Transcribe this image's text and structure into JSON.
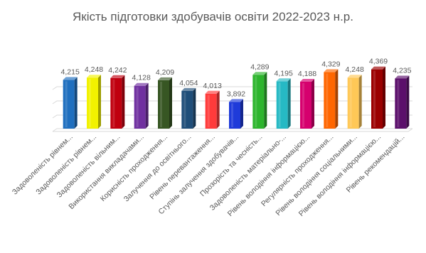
{
  "chart_data": {
    "type": "bar",
    "title": "Якість підготовки здобувачів освіти 2022-2023 н.р.",
    "xlabel": "",
    "ylabel": "",
    "ylim": [
      3.5,
      4.5
    ],
    "grid": true,
    "legend": "none",
    "categories": [
      "Задоволеність рівнем...",
      "Задоволеність рівнем...",
      "Задоволеність вільним...",
      "Використання викладачами...",
      "Корисність проходження...",
      "Залучення до освітнього...",
      "Рівень перевантаження...",
      "Ступінь залучення здобувачів...",
      "Прозорість та чесність...",
      "Задоволеність матеріально-...",
      "Рівень володіння інформацією...",
      "Регулярність проходження...",
      "Рівень володіння соціальними...",
      "Рівень володіння інформацією...",
      "Рівень рекомендацій..."
    ],
    "values": [
      4.215,
      4.248,
      4.242,
      4.128,
      4.209,
      4.054,
      4.013,
      3.892,
      4.289,
      4.195,
      4.188,
      4.329,
      4.248,
      4.369,
      4.235
    ],
    "value_labels": [
      "4,215",
      "4,248",
      "4,242",
      "4,128",
      "4,209",
      "4,054",
      "4,013",
      "3,892",
      "4,289",
      "4,195",
      "4,188",
      "4,329",
      "4,248",
      "4,369",
      "4,235"
    ],
    "colors": [
      "#1f6fbf",
      "#f2f200",
      "#c0000f",
      "#7030a0",
      "#375623",
      "#1f4e79",
      "#ff3b3b",
      "#1f3bd9",
      "#2db52d",
      "#26b9c4",
      "#d6006e",
      "#ff6600",
      "#ffc857",
      "#9b0000",
      "#5b0f6b"
    ]
  }
}
